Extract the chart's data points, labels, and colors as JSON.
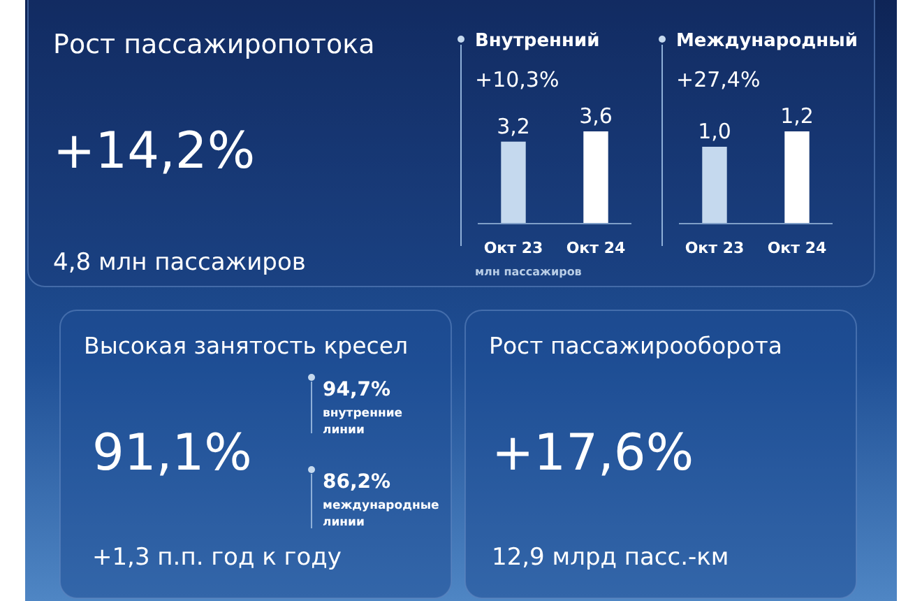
{
  "chart_data": [
    {
      "type": "other",
      "title": "Рост пассажиропотока",
      "annotations": [
        "+14,2%",
        "4,8 млн пассажиров"
      ]
    },
    {
      "type": "bar",
      "title": "Внутренний",
      "subtitle": "+10,3%",
      "categories": [
        "Окт 23",
        "Окт 24"
      ],
      "values": [
        3.2,
        3.6
      ],
      "value_labels": [
        "3,2",
        "3,6"
      ],
      "colors": [
        "#c5d9ee",
        "#ffffff"
      ],
      "annotations": [
        "млн пассажиров"
      ]
    },
    {
      "type": "bar",
      "title": "Международный",
      "subtitle": "+27,4%",
      "categories": [
        "Окт 23",
        "Окт 24"
      ],
      "values": [
        1.0,
        1.2
      ],
      "value_labels": [
        "1,0",
        "1,2"
      ],
      "colors": [
        "#c5d9ee",
        "#ffffff"
      ]
    },
    {
      "type": "other",
      "title": "Высокая занятость кресел",
      "annotations": [
        "91,1%",
        "94,7%",
        "внутренние линии",
        "86,2%",
        "международные линии",
        "+1,3 п.п. год к году"
      ]
    },
    {
      "type": "other",
      "title": "Рост пассажирооборота",
      "annotations": [
        "+17,6%",
        "12,9 млрд пасс.-км"
      ]
    }
  ]
}
